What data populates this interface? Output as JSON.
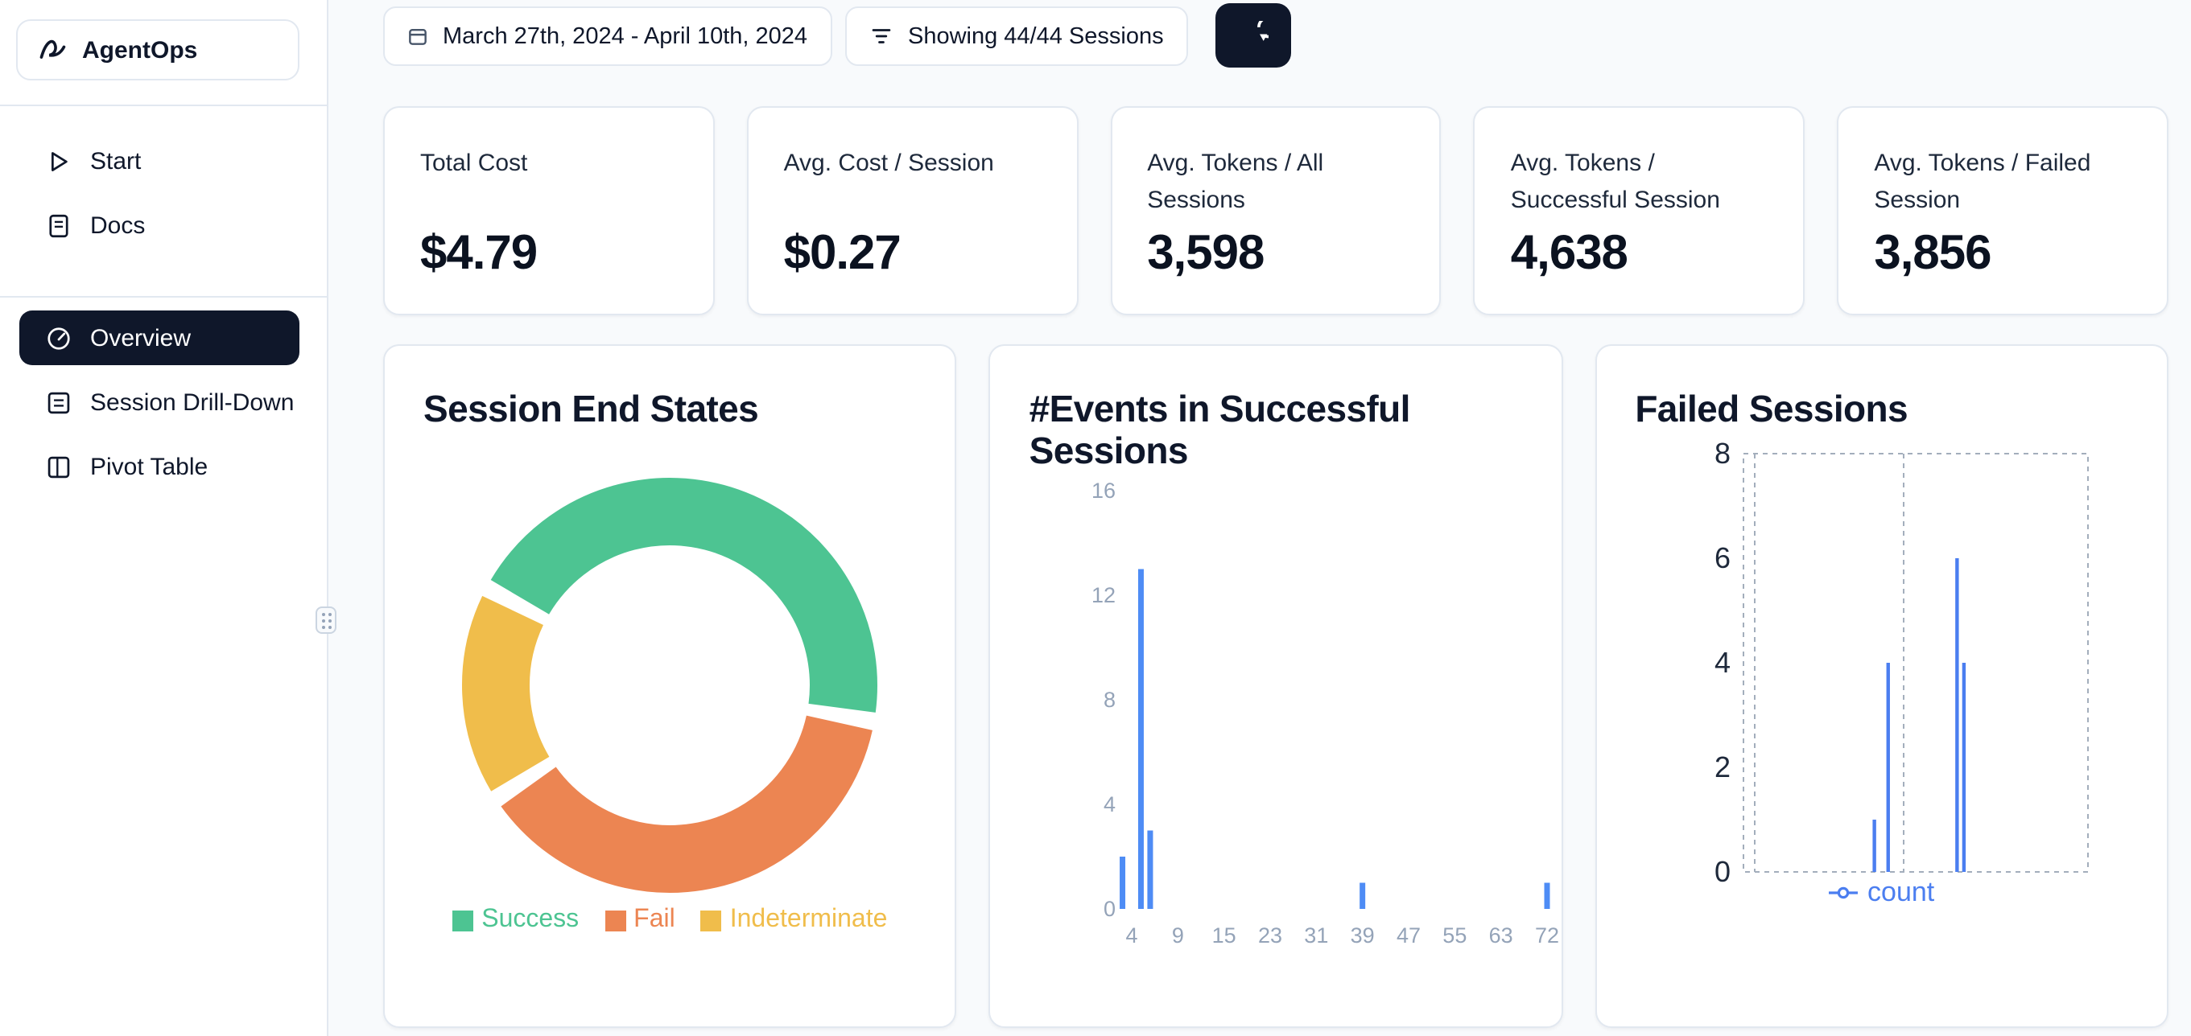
{
  "app": {
    "name": "AgentOps"
  },
  "theme": {
    "background": "#f8fafc",
    "card_border": "#e2e8f0",
    "active_nav_bg": "#0f172a",
    "accent_blue": "#4e8cf5"
  },
  "sidebar": {
    "items": [
      {
        "id": "start",
        "label": "Start",
        "icon": "play-icon",
        "active": false
      },
      {
        "id": "docs",
        "label": "Docs",
        "icon": "docs-icon",
        "active": false
      },
      {
        "id": "overview",
        "label": "Overview",
        "icon": "gauge-icon",
        "active": true
      },
      {
        "id": "session-drill-down",
        "label": "Session Drill-Down",
        "icon": "list-icon",
        "active": false
      },
      {
        "id": "pivot-table",
        "label": "Pivot Table",
        "icon": "columns-icon",
        "active": false
      }
    ]
  },
  "topbar": {
    "date_range_label": "March 27th, 2024 - April 10th, 2024",
    "filter_label": "Showing 44/44 Sessions",
    "refresh_icon": "refresh-icon"
  },
  "stats": [
    {
      "label": "Total Cost",
      "value": "$4.79"
    },
    {
      "label": "Avg. Cost / Session",
      "value": "$0.27"
    },
    {
      "label": "Avg. Tokens / All Sessions",
      "value": "3,598"
    },
    {
      "label": "Avg. Tokens / Successful Session",
      "value": "4,638"
    },
    {
      "label": "Avg. Tokens / Failed Session",
      "value": "3,856"
    }
  ],
  "chart_data": [
    {
      "type": "pie",
      "donut": true,
      "title": "Session End States",
      "labels": [
        "Success",
        "Fail",
        "Indeterminate"
      ],
      "values_percent": [
        45,
        38,
        17
      ],
      "colors": [
        "#4DC492",
        "#EC8552",
        "#F0BD4B"
      ],
      "legend_position": "bottom"
    },
    {
      "type": "bar",
      "title": "#Events in Successful Sessions",
      "xlabel": "",
      "ylabel": "",
      "x_ticks": [
        4,
        9,
        15,
        23,
        31,
        39,
        47,
        55,
        63,
        72
      ],
      "y_ticks": [
        0,
        4,
        8,
        12,
        16
      ],
      "ylim": [
        0,
        16
      ],
      "bars": [
        {
          "x": 3,
          "count": 2
        },
        {
          "x": 5,
          "count": 13
        },
        {
          "x": 6,
          "count": 3
        },
        {
          "x": 39,
          "count": 1
        },
        {
          "x": 72,
          "count": 1
        }
      ],
      "bar_color": "#4e8cf5",
      "grid": false
    },
    {
      "type": "line",
      "title": "Failed Sessions",
      "y_ticks": [
        0,
        2,
        4,
        6,
        8
      ],
      "ylim": [
        0,
        8
      ],
      "grid": "dashed-border",
      "series": [
        {
          "name": "count",
          "color": "#4b7ef0",
          "points": [
            {
              "x_frac": 0.38,
              "y": 1
            },
            {
              "x_frac": 0.42,
              "y": 4
            },
            {
              "x_frac": 0.62,
              "y": 6
            },
            {
              "x_frac": 0.64,
              "y": 4
            }
          ]
        }
      ],
      "legend_position": "bottom"
    }
  ]
}
